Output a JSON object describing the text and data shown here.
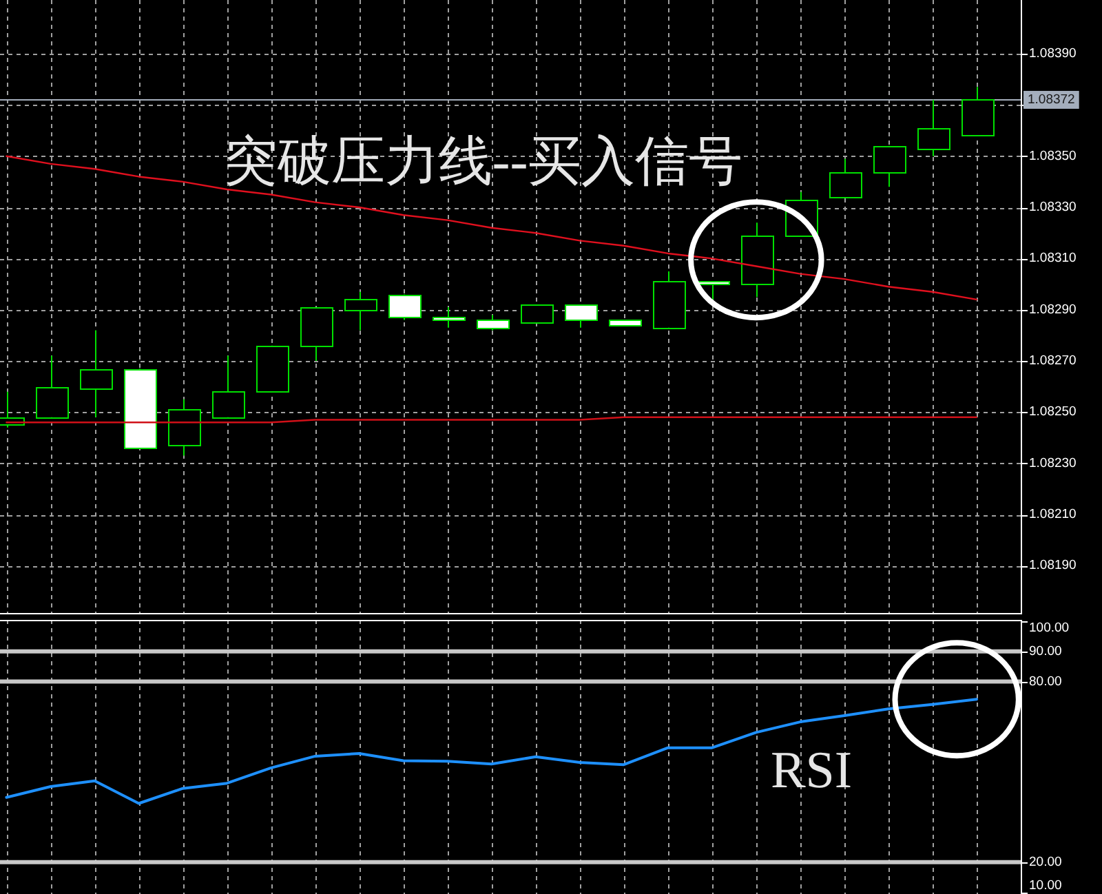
{
  "chart_data": [
    {
      "type": "candlestick",
      "categories": [
        null,
        null,
        null,
        null,
        null,
        null,
        null,
        null,
        null,
        null,
        null,
        null,
        null,
        null,
        null,
        null,
        null,
        null,
        null,
        null,
        null,
        null,
        null
      ],
      "ohlc": [
        [
          1.08245,
          1.08258,
          1.08244,
          1.08248
        ],
        [
          1.08248,
          1.08272,
          1.08248,
          1.0826
        ],
        [
          1.08259,
          1.08282,
          1.08248,
          1.08267
        ],
        [
          1.08267,
          1.08267,
          1.08236,
          1.08236
        ],
        [
          1.08237,
          1.08255,
          1.08233,
          1.08251
        ],
        [
          1.08248,
          1.08272,
          1.08248,
          1.08258
        ],
        [
          1.08258,
          1.08276,
          1.08258,
          1.08276
        ],
        [
          1.08276,
          1.08291,
          1.0827,
          1.08291
        ],
        [
          1.0829,
          1.08297,
          1.08282,
          1.08294
        ],
        [
          1.08296,
          1.08296,
          1.08286,
          1.08287
        ],
        [
          1.08287,
          1.08291,
          1.08283,
          1.08286
        ],
        [
          1.08286,
          1.08288,
          1.08282,
          1.08283
        ],
        [
          1.08285,
          1.08292,
          1.08285,
          1.08292
        ],
        [
          1.08292,
          1.08292,
          1.08283,
          1.08286
        ],
        [
          1.08286,
          1.08286,
          1.08284,
          1.08284
        ],
        [
          1.08283,
          1.08305,
          1.08283,
          1.08301
        ],
        [
          1.08301,
          1.08301,
          1.08294,
          1.083
        ],
        [
          1.083,
          1.08324,
          1.08295,
          1.08319
        ],
        [
          1.08319,
          1.08336,
          1.08319,
          1.08333
        ],
        [
          1.08334,
          1.08349,
          1.08334,
          1.08344
        ],
        [
          1.08344,
          1.08354,
          1.08338,
          1.08354
        ],
        [
          1.08353,
          1.08372,
          1.0835,
          1.08361
        ],
        [
          1.08358,
          1.08377,
          1.08358,
          1.08372
        ]
      ],
      "color": "#00e000",
      "series": [
        {
          "type": "line",
          "color": "#e0101e",
          "values": [
            1.0835,
            1.08347,
            1.08345,
            1.08342,
            1.0834,
            1.08337,
            1.08335,
            1.08332,
            1.0833,
            1.08327,
            1.08325,
            1.08322,
            1.0832,
            1.08317,
            1.08315,
            1.08312,
            1.0831,
            1.08307,
            1.08304,
            1.08302,
            1.08299,
            1.08297,
            1.08294
          ]
        },
        {
          "type": "line",
          "color": "#d01018",
          "values": [
            1.08246,
            1.08246,
            1.08246,
            1.08246,
            1.08246,
            1.08246,
            1.08246,
            1.08247,
            1.08247,
            1.08247,
            1.08247,
            1.08247,
            1.08247,
            1.08247,
            1.08248,
            1.08248,
            1.08248,
            1.08248,
            1.08248,
            1.08248,
            1.08248,
            1.08248,
            1.08248
          ]
        }
      ],
      "ylim": [
        1.08171,
        1.08411
      ],
      "yticks": [
        {
          "value": 1.0839,
          "label": "1.08390"
        },
        {
          "value": 1.0837,
          "label": null
        },
        {
          "value": 1.0835,
          "label": "1.08350"
        },
        {
          "value": 1.0833,
          "label": "1.08330"
        },
        {
          "value": 1.0831,
          "label": "1.08310"
        },
        {
          "value": 1.0829,
          "label": "1.08290"
        },
        {
          "value": 1.0827,
          "label": "1.08270"
        },
        {
          "value": 1.0825,
          "label": "1.08250"
        },
        {
          "value": 1.0823,
          "label": "1.08230"
        },
        {
          "value": 1.0821,
          "label": "1.08210"
        },
        {
          "value": 1.0819,
          "label": "1.08190"
        }
      ],
      "grid": true,
      "tick_labels": "y",
      "ref_lines": [
        {
          "axis": "y",
          "value": 1.08372,
          "label": "1.08372",
          "color": "#a4aebc"
        }
      ],
      "annotations": [
        "突破压力线--买入信号"
      ]
    },
    {
      "type": "line",
      "categories": [
        null,
        null,
        null,
        null,
        null,
        null,
        null,
        null,
        null,
        null,
        null,
        null,
        null,
        null,
        null,
        null,
        null,
        null,
        null,
        null,
        null,
        null,
        null
      ],
      "series": [
        {
          "color": "#1e90ff",
          "values": [
            41.5,
            45.1,
            47.0,
            39.5,
            44.5,
            46.2,
            51.3,
            55.2,
            56.1,
            53.7,
            53.5,
            52.6,
            55.0,
            53.1,
            52.4,
            58.0,
            58.0,
            63.1,
            66.6,
            68.7,
            70.9,
            72.4,
            74.1
          ]
        }
      ],
      "ylim": [
        9.4,
        100.5
      ],
      "yticks": [
        {
          "value": 100,
          "label": "100.00"
        },
        {
          "value": 90,
          "label": "90.00"
        },
        {
          "value": 80,
          "label": "80.00"
        },
        {
          "value": 20,
          "label": "20.00"
        },
        {
          "value": 10,
          "label": "10.00"
        }
      ],
      "grid": "x",
      "tick_labels": "y",
      "ref_lines": [
        {
          "axis": "y",
          "value": 90,
          "color": "#c8c8c8"
        },
        {
          "axis": "y",
          "value": 80,
          "color": "#c8c8c8"
        },
        {
          "axis": "y",
          "value": 20,
          "color": "#c8c8c8"
        }
      ],
      "annotations": [
        "RSI"
      ]
    }
  ]
}
